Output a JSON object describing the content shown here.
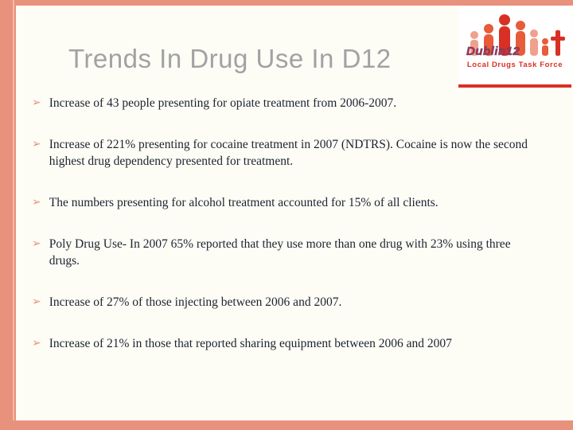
{
  "slide": {
    "title": "Trends In Drug Use In D12",
    "bullet_glyph": "➢",
    "bullets": [
      "Increase of 43 people presenting for opiate treatment from 2006-2007.",
      "Increase of 221% presenting for cocaine treatment in 2007 (NDTRS). Cocaine is now the second highest drug dependency presented for treatment.",
      "The numbers presenting for alcohol treatment accounted for 15% of all clients.",
      "Poly Drug Use- In 2007 65% reported that they use more than one drug with 23% using three drugs.",
      "Increase of 27% of those injecting between 2006 and 2007.",
      "Increase of 21% in those that reported sharing equipment between 2006 and 2007"
    ],
    "logo": {
      "title": "Dublin12",
      "subtitle": "Local Drugs Task Force"
    },
    "colors": {
      "accent": "#E8917C",
      "title_gray": "#A2A2A4",
      "body_text": "#1E2230",
      "logo_red": "#D93025",
      "logo_blue": "#2F4B9E",
      "background": "#FDFDF6"
    }
  }
}
